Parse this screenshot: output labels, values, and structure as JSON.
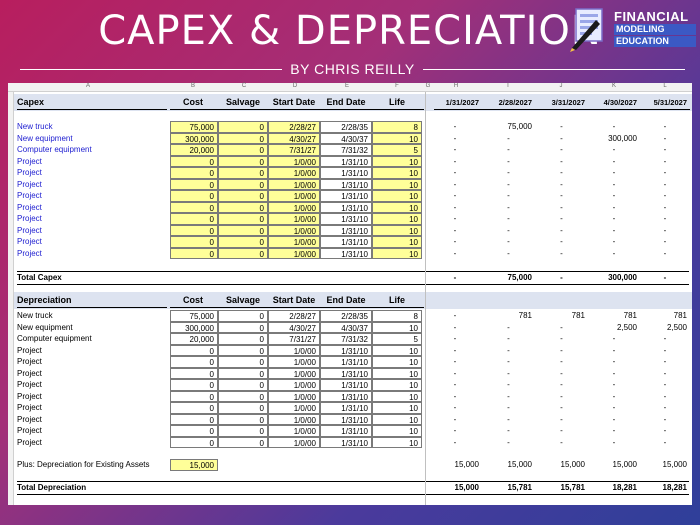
{
  "header": {
    "title": "CAPEX & DEPRECIATION",
    "byline": "BY CHRIS REILLY",
    "logo": {
      "line1": "FINANCIAL",
      "line2": "MODELING",
      "line3": "EDUCATION"
    }
  },
  "sheet": {
    "column_letters": [
      "A",
      "B",
      "C",
      "D",
      "E",
      "F",
      "G",
      "H",
      "I",
      "J",
      "K",
      "L"
    ],
    "dates": [
      "1/31/2027",
      "2/28/2027",
      "3/31/2027",
      "4/30/2027",
      "5/31/2027"
    ],
    "capex": {
      "headers": {
        "label": "Capex",
        "cost": "Cost",
        "salvage": "Salvage",
        "start": "Start Date",
        "end": "End Date",
        "life": "Life"
      },
      "rows": [
        {
          "label": "New truck",
          "cost": "75,000",
          "salvage": "0",
          "start": "2/28/27",
          "end": "2/28/35",
          "life": "8",
          "months": [
            "-",
            "75,000",
            "-",
            "-",
            "-"
          ]
        },
        {
          "label": "New equipment",
          "cost": "300,000",
          "salvage": "0",
          "start": "4/30/27",
          "end": "4/30/37",
          "life": "10",
          "months": [
            "-",
            "-",
            "-",
            "300,000",
            "-"
          ]
        },
        {
          "label": "Computer equipment",
          "cost": "20,000",
          "salvage": "0",
          "start": "7/31/27",
          "end": "7/31/32",
          "life": "5",
          "months": [
            "-",
            "-",
            "-",
            "-",
            "-"
          ]
        },
        {
          "label": "Project",
          "cost": "0",
          "salvage": "0",
          "start": "1/0/00",
          "end": "1/31/10",
          "life": "10",
          "months": [
            "-",
            "-",
            "-",
            "-",
            "-"
          ]
        },
        {
          "label": "Project",
          "cost": "0",
          "salvage": "0",
          "start": "1/0/00",
          "end": "1/31/10",
          "life": "10",
          "months": [
            "-",
            "-",
            "-",
            "-",
            "-"
          ]
        },
        {
          "label": "Project",
          "cost": "0",
          "salvage": "0",
          "start": "1/0/00",
          "end": "1/31/10",
          "life": "10",
          "months": [
            "-",
            "-",
            "-",
            "-",
            "-"
          ]
        },
        {
          "label": "Project",
          "cost": "0",
          "salvage": "0",
          "start": "1/0/00",
          "end": "1/31/10",
          "life": "10",
          "months": [
            "-",
            "-",
            "-",
            "-",
            "-"
          ]
        },
        {
          "label": "Project",
          "cost": "0",
          "salvage": "0",
          "start": "1/0/00",
          "end": "1/31/10",
          "life": "10",
          "months": [
            "-",
            "-",
            "-",
            "-",
            "-"
          ]
        },
        {
          "label": "Project",
          "cost": "0",
          "salvage": "0",
          "start": "1/0/00",
          "end": "1/31/10",
          "life": "10",
          "months": [
            "-",
            "-",
            "-",
            "-",
            "-"
          ]
        },
        {
          "label": "Project",
          "cost": "0",
          "salvage": "0",
          "start": "1/0/00",
          "end": "1/31/10",
          "life": "10",
          "months": [
            "-",
            "-",
            "-",
            "-",
            "-"
          ]
        },
        {
          "label": "Project",
          "cost": "0",
          "salvage": "0",
          "start": "1/0/00",
          "end": "1/31/10",
          "life": "10",
          "months": [
            "-",
            "-",
            "-",
            "-",
            "-"
          ]
        },
        {
          "label": "Project",
          "cost": "0",
          "salvage": "0",
          "start": "1/0/00",
          "end": "1/31/10",
          "life": "10",
          "months": [
            "-",
            "-",
            "-",
            "-",
            "-"
          ]
        }
      ],
      "total": {
        "label": "Total Capex",
        "months": [
          "-",
          "75,000",
          "-",
          "300,000",
          "-"
        ]
      }
    },
    "depreciation": {
      "headers": {
        "label": "Depreciation",
        "cost": "Cost",
        "salvage": "Salvage",
        "start": "Start Date",
        "end": "End Date",
        "life": "Life"
      },
      "rows": [
        {
          "label": "New truck",
          "cost": "75,000",
          "salvage": "0",
          "start": "2/28/27",
          "end": "2/28/35",
          "life": "8",
          "months": [
            "-",
            "781",
            "781",
            "781",
            "781"
          ]
        },
        {
          "label": "New equipment",
          "cost": "300,000",
          "salvage": "0",
          "start": "4/30/27",
          "end": "4/30/37",
          "life": "10",
          "months": [
            "-",
            "-",
            "-",
            "2,500",
            "2,500"
          ]
        },
        {
          "label": "Computer equipment",
          "cost": "20,000",
          "salvage": "0",
          "start": "7/31/27",
          "end": "7/31/32",
          "life": "5",
          "months": [
            "-",
            "-",
            "-",
            "-",
            "-"
          ]
        },
        {
          "label": "Project",
          "cost": "0",
          "salvage": "0",
          "start": "1/0/00",
          "end": "1/31/10",
          "life": "10",
          "months": [
            "-",
            "-",
            "-",
            "-",
            "-"
          ]
        },
        {
          "label": "Project",
          "cost": "0",
          "salvage": "0",
          "start": "1/0/00",
          "end": "1/31/10",
          "life": "10",
          "months": [
            "-",
            "-",
            "-",
            "-",
            "-"
          ]
        },
        {
          "label": "Project",
          "cost": "0",
          "salvage": "0",
          "start": "1/0/00",
          "end": "1/31/10",
          "life": "10",
          "months": [
            "-",
            "-",
            "-",
            "-",
            "-"
          ]
        },
        {
          "label": "Project",
          "cost": "0",
          "salvage": "0",
          "start": "1/0/00",
          "end": "1/31/10",
          "life": "10",
          "months": [
            "-",
            "-",
            "-",
            "-",
            "-"
          ]
        },
        {
          "label": "Project",
          "cost": "0",
          "salvage": "0",
          "start": "1/0/00",
          "end": "1/31/10",
          "life": "10",
          "months": [
            "-",
            "-",
            "-",
            "-",
            "-"
          ]
        },
        {
          "label": "Project",
          "cost": "0",
          "salvage": "0",
          "start": "1/0/00",
          "end": "1/31/10",
          "life": "10",
          "months": [
            "-",
            "-",
            "-",
            "-",
            "-"
          ]
        },
        {
          "label": "Project",
          "cost": "0",
          "salvage": "0",
          "start": "1/0/00",
          "end": "1/31/10",
          "life": "10",
          "months": [
            "-",
            "-",
            "-",
            "-",
            "-"
          ]
        },
        {
          "label": "Project",
          "cost": "0",
          "salvage": "0",
          "start": "1/0/00",
          "end": "1/31/10",
          "life": "10",
          "months": [
            "-",
            "-",
            "-",
            "-",
            "-"
          ]
        },
        {
          "label": "Project",
          "cost": "0",
          "salvage": "0",
          "start": "1/0/00",
          "end": "1/31/10",
          "life": "10",
          "months": [
            "-",
            "-",
            "-",
            "-",
            "-"
          ]
        }
      ],
      "existing": {
        "label": "Plus: Depreciation for Existing Assets",
        "value": "15,000",
        "months": [
          "15,000",
          "15,000",
          "15,000",
          "15,000",
          "15,000"
        ]
      },
      "total": {
        "label": "Total Depreciation",
        "months": [
          "15,000",
          "15,781",
          "15,781",
          "18,281",
          "18,281"
        ]
      }
    }
  }
}
